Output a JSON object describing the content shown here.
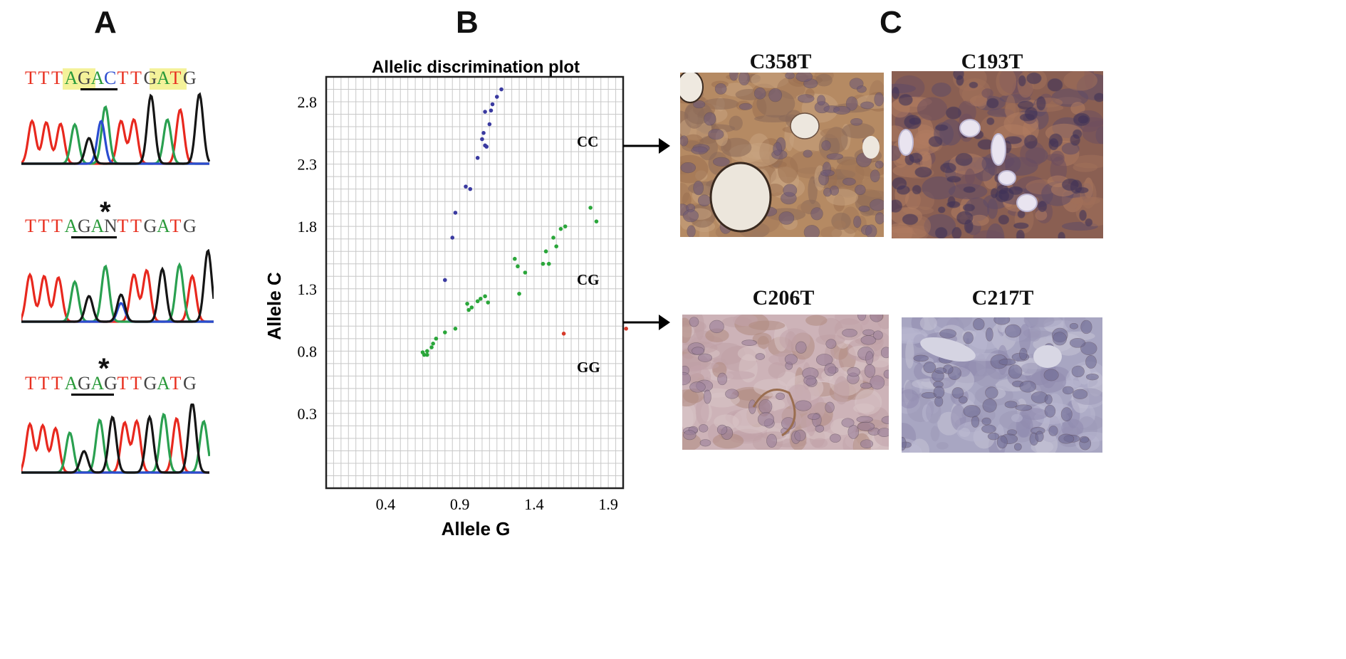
{
  "panels": {
    "a": "A",
    "b": "B",
    "c": "C"
  },
  "panel_a": {
    "sequences": [
      {
        "letters": [
          "T",
          "T",
          "T",
          "A",
          "G",
          "A",
          "C",
          "T",
          "T",
          "G",
          "A",
          "T",
          "G"
        ],
        "colors": [
          "#e83020",
          "#e83020",
          "#e83020",
          "#2a9a3a",
          "#444444",
          "#2a9a3a",
          "#2f4fd0",
          "#e83020",
          "#e83020",
          "#444444",
          "#2a9a3a",
          "#e83020",
          "#444444"
        ],
        "highlight": true,
        "star": ""
      },
      {
        "letters": [
          "T",
          "T",
          "T",
          "A",
          "G",
          "A",
          "N",
          "T",
          "T",
          "G",
          "A",
          "T",
          "G"
        ],
        "colors": [
          "#e83020",
          "#e83020",
          "#e83020",
          "#2a9a3a",
          "#444444",
          "#2a9a3a",
          "#444444",
          "#e83020",
          "#e83020",
          "#444444",
          "#2a9a3a",
          "#e83020",
          "#444444"
        ],
        "highlight": false,
        "star": "*"
      },
      {
        "letters": [
          "T",
          "T",
          "T",
          "A",
          "G",
          "A",
          "G",
          "T",
          "T",
          "G",
          "A",
          "T",
          "G"
        ],
        "colors": [
          "#e83020",
          "#e83020",
          "#e83020",
          "#2a9a3a",
          "#444444",
          "#2a9a3a",
          "#444444",
          "#e83020",
          "#e83020",
          "#444444",
          "#2a9a3a",
          "#e83020",
          "#444444"
        ],
        "highlight": false,
        "star": "*"
      }
    ],
    "trace_colors": {
      "T": "#e8281e",
      "A": "#2aa050",
      "C": "#2a4cd0",
      "G": "#151515"
    }
  },
  "chart_data": {
    "type": "scatter",
    "title": "Allelic discrimination plot",
    "xlabel": "Allele G",
    "ylabel": "Allele C",
    "xlim": [
      0.0,
      2.0
    ],
    "ylim": [
      -0.3,
      3.0
    ],
    "xticks": [
      "0.4",
      "0.9",
      "1.4",
      "1.9"
    ],
    "yticks": [
      "0.3",
      "0.8",
      "1.3",
      "1.8",
      "2.3",
      "2.8"
    ],
    "grid": true,
    "series": [
      {
        "name": "CC",
        "color": "#3a3aa0",
        "points": [
          [
            1.18,
            2.9
          ],
          [
            1.15,
            2.84
          ],
          [
            1.12,
            2.78
          ],
          [
            1.11,
            2.73
          ],
          [
            1.07,
            2.72
          ],
          [
            1.1,
            2.62
          ],
          [
            1.06,
            2.55
          ],
          [
            1.05,
            2.5
          ],
          [
            1.07,
            2.45
          ],
          [
            1.08,
            2.44
          ],
          [
            1.02,
            2.35
          ],
          [
            0.94,
            2.12
          ],
          [
            0.97,
            2.1
          ],
          [
            0.87,
            1.91
          ],
          [
            0.85,
            1.71
          ],
          [
            0.8,
            1.37
          ]
        ]
      },
      {
        "name": "CG",
        "color": "#2aa63a",
        "points": [
          [
            1.78,
            1.95
          ],
          [
            1.82,
            1.84
          ],
          [
            1.61,
            1.8
          ],
          [
            1.58,
            1.78
          ],
          [
            1.53,
            1.71
          ],
          [
            1.55,
            1.64
          ],
          [
            1.48,
            1.6
          ],
          [
            1.5,
            1.5
          ],
          [
            1.46,
            1.5
          ],
          [
            1.27,
            1.54
          ],
          [
            1.29,
            1.48
          ],
          [
            1.34,
            1.43
          ],
          [
            1.3,
            1.26
          ],
          [
            1.07,
            1.24
          ],
          [
            1.04,
            1.22
          ],
          [
            1.02,
            1.2
          ],
          [
            1.09,
            1.19
          ],
          [
            0.95,
            1.18
          ],
          [
            0.98,
            1.15
          ],
          [
            0.96,
            1.13
          ],
          [
            0.87,
            0.98
          ],
          [
            0.8,
            0.95
          ],
          [
            0.74,
            0.9
          ],
          [
            0.72,
            0.86
          ],
          [
            0.71,
            0.83
          ],
          [
            0.68,
            0.8
          ],
          [
            0.65,
            0.79
          ],
          [
            0.66,
            0.77
          ],
          [
            0.68,
            0.77
          ]
        ]
      },
      {
        "name": "GG",
        "color": "#d63a2a",
        "points": [
          [
            1.6,
            0.94
          ],
          [
            2.02,
            0.98
          ]
        ]
      }
    ],
    "annotations": [
      "CC",
      "CG",
      "GG"
    ]
  },
  "panel_c": {
    "images": [
      {
        "label": "C358T",
        "kind": "strong-brown"
      },
      {
        "label": "C193T",
        "kind": "dark-brown"
      },
      {
        "label": "C206T",
        "kind": "weak-pink"
      },
      {
        "label": "C217T",
        "kind": "blue-negative"
      }
    ]
  }
}
